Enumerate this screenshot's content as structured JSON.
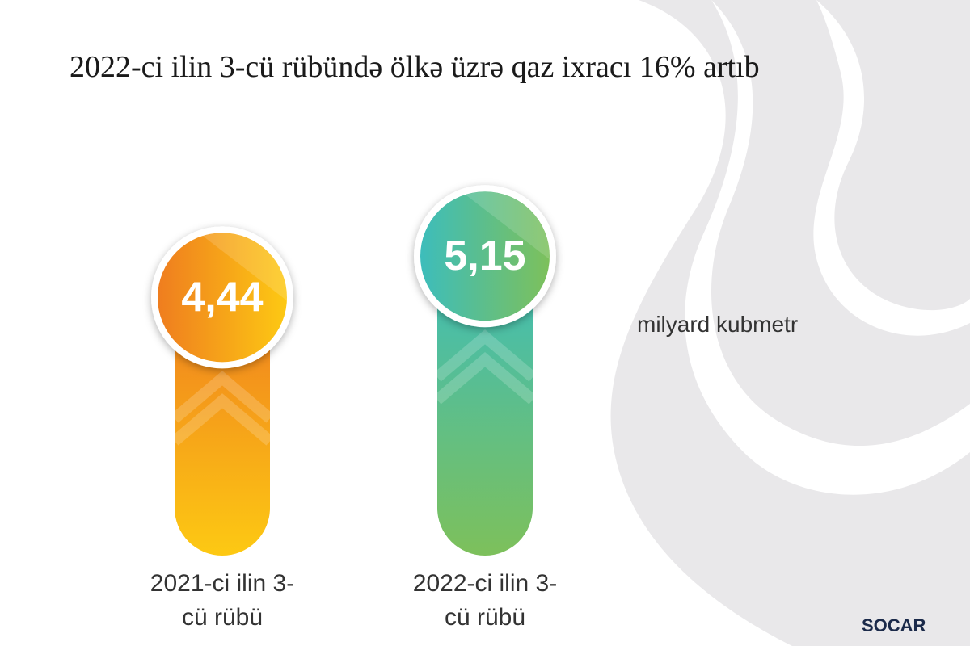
{
  "chart_data": {
    "type": "bar",
    "title": "2022-ci ilin 3-cü rübündə ölkə üzrə qaz ixracı 16% artıb",
    "unit_label": "milyard kubmetr",
    "categories": [
      "2021-ci ilin 3-cü rübü",
      "2022-ci ilin 3-cü rübü"
    ],
    "values": [
      4.44,
      5.15
    ],
    "value_labels": [
      "4,44",
      "5,15"
    ],
    "colors": [
      [
        "#ef7d1f",
        "#fdc913"
      ],
      [
        "#3dbdbb",
        "#7dc05b"
      ]
    ]
  },
  "logo": "SOCAR"
}
